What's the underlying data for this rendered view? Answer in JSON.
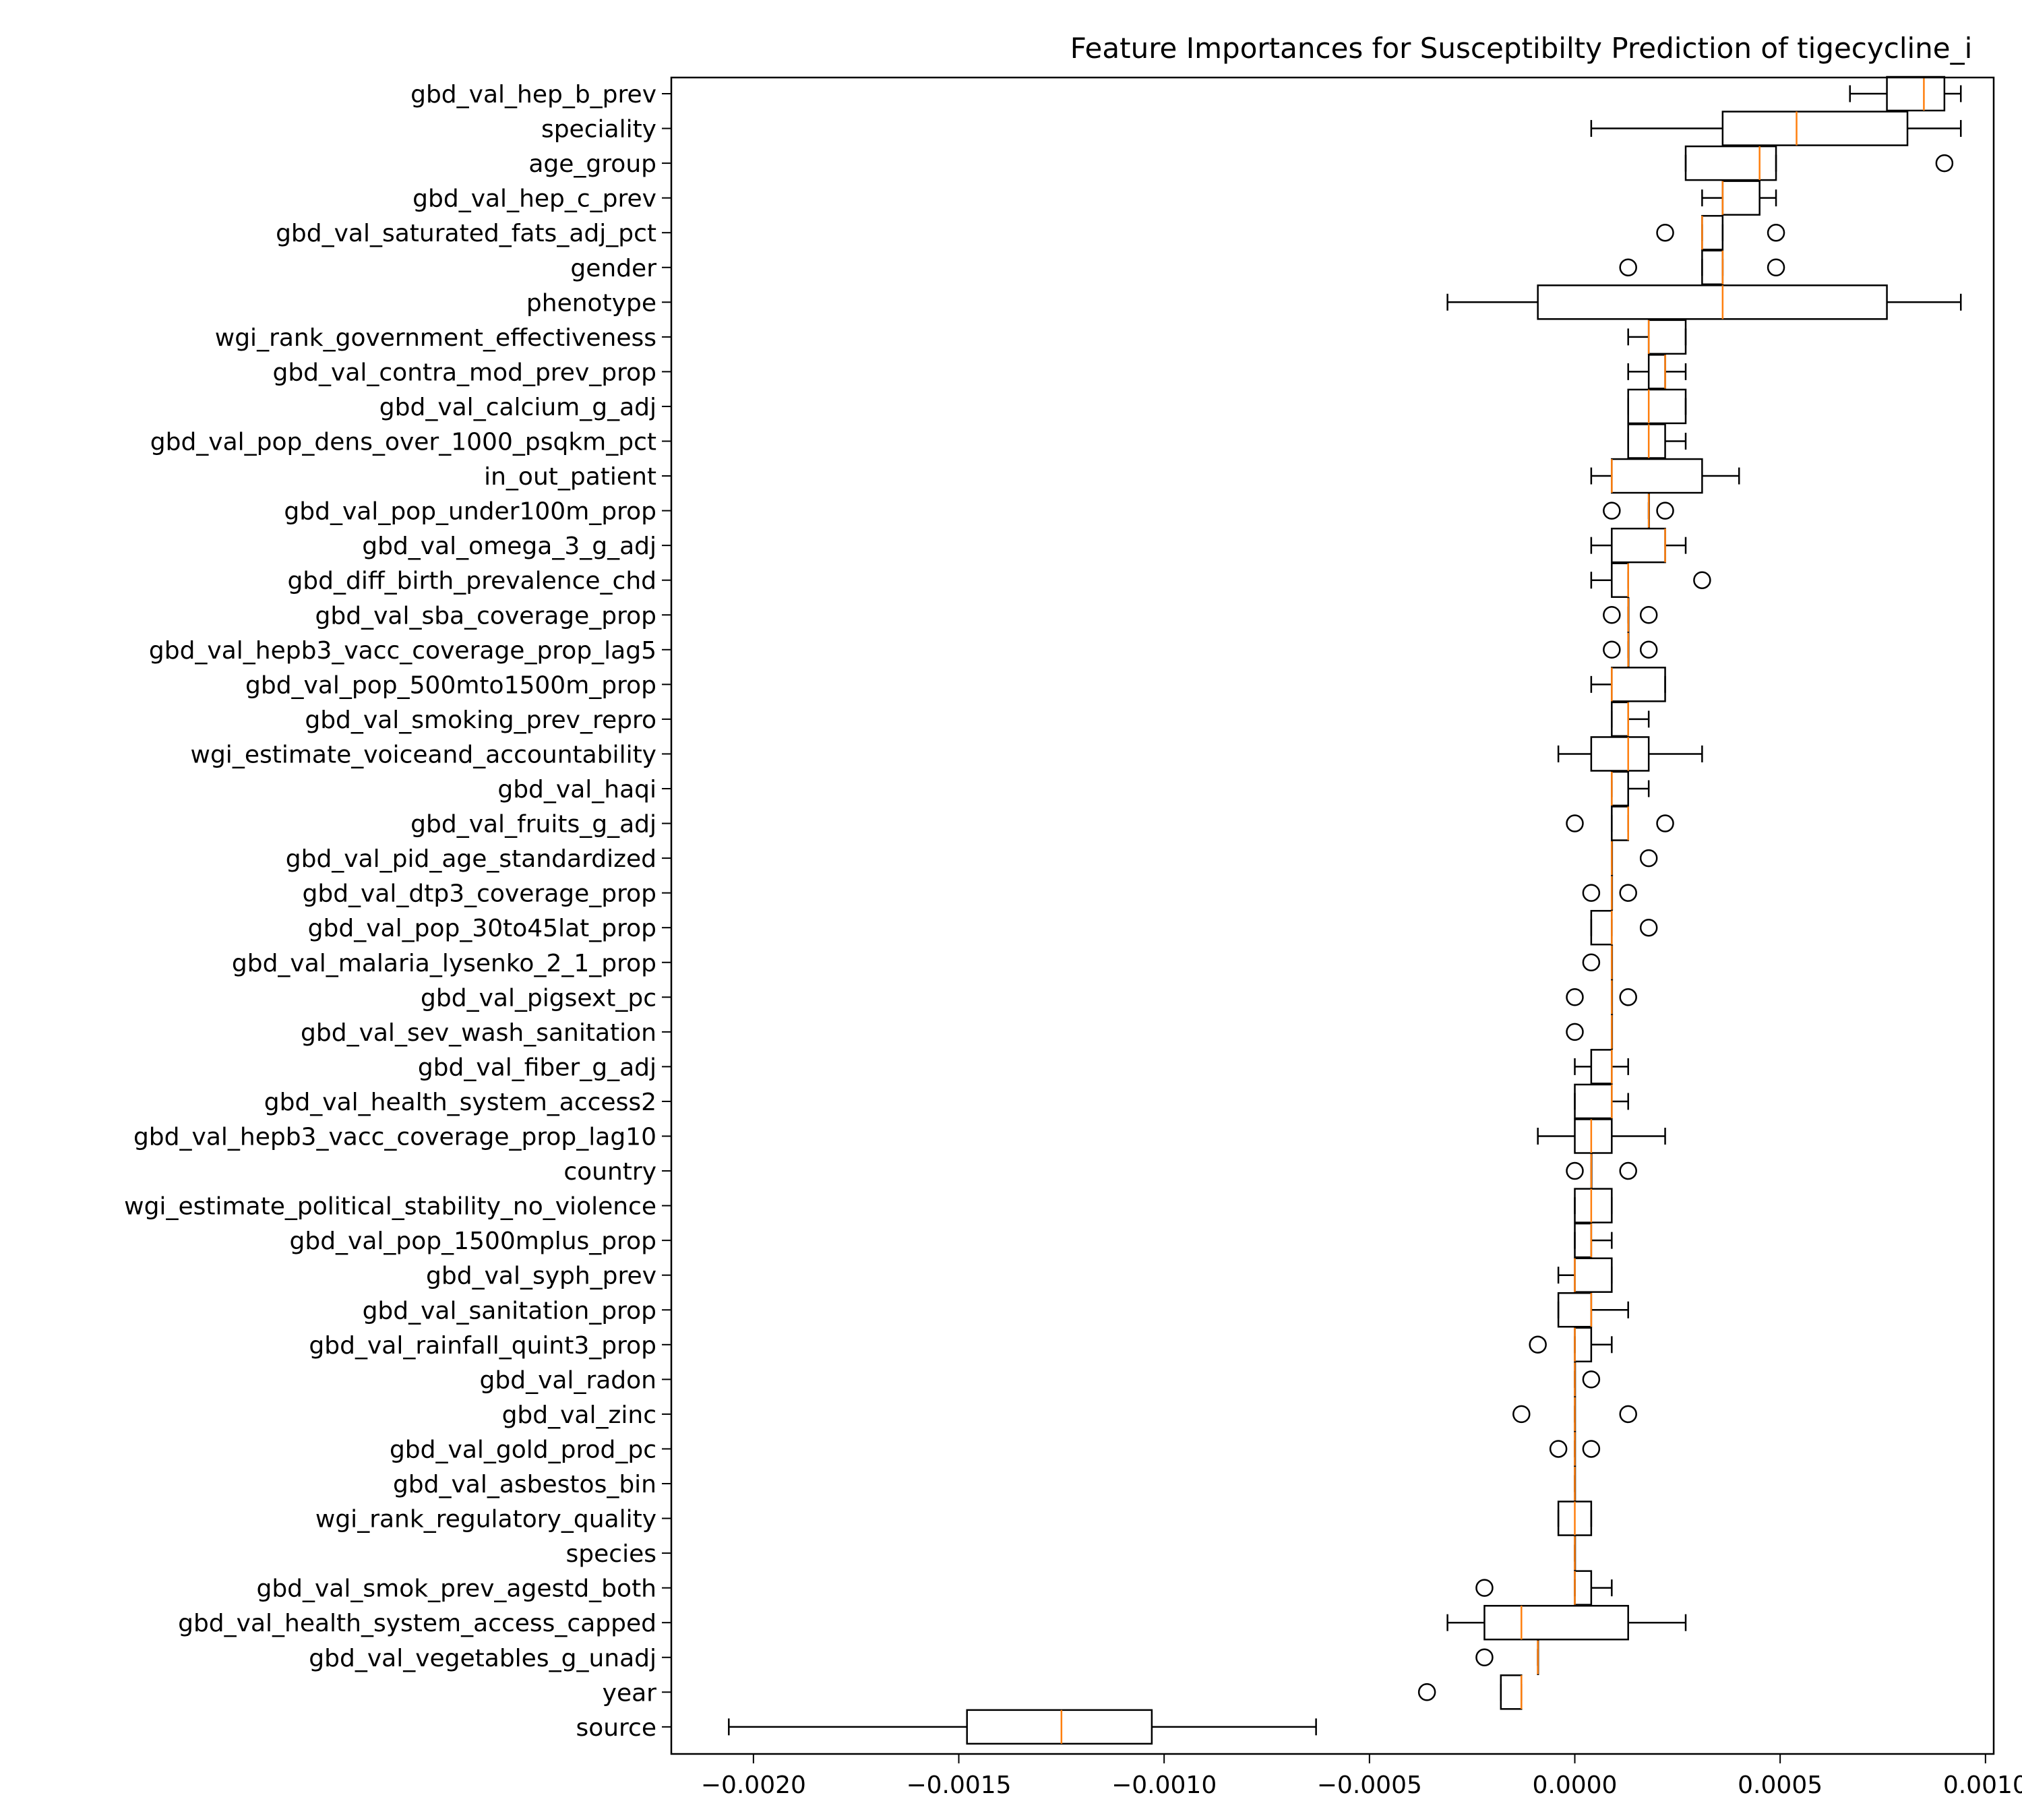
{
  "colors": {
    "median": "#ff7f0e",
    "box": "#000000",
    "background": "#ffffff"
  },
  "chart_data": {
    "type": "boxplot",
    "orientation": "horizontal",
    "title": "Feature Importances for Susceptibilty Prediction of tigecycline_i",
    "xlabel": "",
    "ylabel": "",
    "xlim": [
      -0.0022,
      0.00102
    ],
    "xticks": [
      -0.002,
      -0.0015,
      -0.001,
      -0.0005,
      0.0,
      0.0005,
      0.001
    ],
    "xtick_labels": [
      "−0.0020",
      "−0.0015",
      "−0.0010",
      "−0.0005",
      "0.0000",
      "0.0005",
      "0.0010"
    ],
    "grid": false,
    "legend": "none",
    "features": [
      {
        "label": "gbd_val_hep_b_prev",
        "wmin": 0.00067,
        "q1": 0.00076,
        "med": 0.00085,
        "q3": 0.0009,
        "wmax": 0.00094,
        "outliers": []
      },
      {
        "label": "speciality",
        "wmin": 4e-05,
        "q1": 0.00036,
        "med": 0.00054,
        "q3": 0.00081,
        "wmax": 0.00094,
        "outliers": []
      },
      {
        "label": "age_group",
        "wmin": 0.00027,
        "q1": 0.00027,
        "med": 0.00045,
        "q3": 0.00049,
        "wmax": 0.00049,
        "outliers": [
          0.0009
        ]
      },
      {
        "label": "gbd_val_hep_c_prev",
        "wmin": 0.00031,
        "q1": 0.00036,
        "med": 0.00036,
        "q3": 0.00045,
        "wmax": 0.00049,
        "outliers": []
      },
      {
        "label": "gbd_val_saturated_fats_adj_pct",
        "wmin": 0.00031,
        "q1": 0.00031,
        "med": 0.00031,
        "q3": 0.00036,
        "wmax": 0.00036,
        "outliers": [
          0.00022,
          0.00049
        ]
      },
      {
        "label": "gender",
        "wmin": 0.00031,
        "q1": 0.00031,
        "med": 0.00036,
        "q3": 0.00036,
        "wmax": 0.00036,
        "outliers": [
          0.00013,
          0.00049
        ]
      },
      {
        "label": "phenotype",
        "wmin": -0.00031,
        "q1": -9e-05,
        "med": 0.00036,
        "q3": 0.00076,
        "wmax": 0.00094,
        "outliers": []
      },
      {
        "label": "wgi_rank_government_effectiveness",
        "wmin": 0.00013,
        "q1": 0.00018,
        "med": 0.00018,
        "q3": 0.00027,
        "wmax": 0.00027,
        "outliers": []
      },
      {
        "label": "gbd_val_contra_mod_prev_prop",
        "wmin": 0.00013,
        "q1": 0.00018,
        "med": 0.00022,
        "q3": 0.00022,
        "wmax": 0.00027,
        "outliers": []
      },
      {
        "label": "gbd_val_calcium_g_adj",
        "wmin": 0.00013,
        "q1": 0.00013,
        "med": 0.00018,
        "q3": 0.00027,
        "wmax": 0.00027,
        "outliers": []
      },
      {
        "label": "gbd_val_pop_dens_over_1000_psqkm_pct",
        "wmin": 0.00013,
        "q1": 0.00013,
        "med": 0.00018,
        "q3": 0.00022,
        "wmax": 0.00027,
        "outliers": []
      },
      {
        "label": "in_out_patient",
        "wmin": 4e-05,
        "q1": 9e-05,
        "med": 9e-05,
        "q3": 0.00031,
        "wmax": 0.0004,
        "outliers": []
      },
      {
        "label": "gbd_val_pop_under100m_prop",
        "wmin": 0.00018,
        "q1": 0.00018,
        "med": 0.00018,
        "q3": 0.00018,
        "wmax": 0.00018,
        "outliers": [
          9e-05,
          0.00022
        ]
      },
      {
        "label": "gbd_val_omega_3_g_adj",
        "wmin": 4e-05,
        "q1": 9e-05,
        "med": 0.00022,
        "q3": 0.00022,
        "wmax": 0.00027,
        "outliers": []
      },
      {
        "label": "gbd_diff_birth_prevalence_chd",
        "wmin": 4e-05,
        "q1": 9e-05,
        "med": 0.00013,
        "q3": 0.00013,
        "wmax": 0.00013,
        "outliers": [
          0.00031
        ]
      },
      {
        "label": "gbd_val_sba_coverage_prop",
        "wmin": 0.00013,
        "q1": 0.00013,
        "med": 0.00013,
        "q3": 0.00013,
        "wmax": 0.00013,
        "outliers": [
          9e-05,
          0.00018
        ]
      },
      {
        "label": "gbd_val_hepb3_vacc_coverage_prop_lag5",
        "wmin": 0.00013,
        "q1": 0.00013,
        "med": 0.00013,
        "q3": 0.00013,
        "wmax": 0.00013,
        "outliers": [
          9e-05,
          0.00018
        ]
      },
      {
        "label": "gbd_val_pop_500mto1500m_prop",
        "wmin": 4e-05,
        "q1": 9e-05,
        "med": 9e-05,
        "q3": 0.00022,
        "wmax": 0.00022,
        "outliers": []
      },
      {
        "label": "gbd_val_smoking_prev_repro",
        "wmin": 9e-05,
        "q1": 9e-05,
        "med": 0.00013,
        "q3": 0.00013,
        "wmax": 0.00018,
        "outliers": []
      },
      {
        "label": "wgi_estimate_voiceand_accountability",
        "wmin": -4e-05,
        "q1": 4e-05,
        "med": 0.00013,
        "q3": 0.00018,
        "wmax": 0.00031,
        "outliers": []
      },
      {
        "label": "gbd_val_haqi",
        "wmin": 9e-05,
        "q1": 9e-05,
        "med": 9e-05,
        "q3": 0.00013,
        "wmax": 0.00018,
        "outliers": []
      },
      {
        "label": "gbd_val_fruits_g_adj",
        "wmin": 9e-05,
        "q1": 9e-05,
        "med": 0.00013,
        "q3": 0.00013,
        "wmax": 0.00013,
        "outliers": [
          0.0,
          0.00022
        ]
      },
      {
        "label": "gbd_val_pid_age_standardized",
        "wmin": 9e-05,
        "q1": 9e-05,
        "med": 9e-05,
        "q3": 9e-05,
        "wmax": 9e-05,
        "outliers": [
          0.00018
        ]
      },
      {
        "label": "gbd_val_dtp3_coverage_prop",
        "wmin": 9e-05,
        "q1": 9e-05,
        "med": 9e-05,
        "q3": 9e-05,
        "wmax": 9e-05,
        "outliers": [
          4e-05,
          0.00013
        ]
      },
      {
        "label": "gbd_val_pop_30to45lat_prop",
        "wmin": 4e-05,
        "q1": 4e-05,
        "med": 9e-05,
        "q3": 9e-05,
        "wmax": 9e-05,
        "outliers": [
          0.00018
        ]
      },
      {
        "label": "gbd_val_malaria_lysenko_2_1_prop",
        "wmin": 9e-05,
        "q1": 9e-05,
        "med": 9e-05,
        "q3": 9e-05,
        "wmax": 9e-05,
        "outliers": [
          4e-05
        ]
      },
      {
        "label": "gbd_val_pigsext_pc",
        "wmin": 9e-05,
        "q1": 9e-05,
        "med": 9e-05,
        "q3": 9e-05,
        "wmax": 9e-05,
        "outliers": [
          0.0,
          0.00013
        ]
      },
      {
        "label": "gbd_val_sev_wash_sanitation",
        "wmin": 9e-05,
        "q1": 9e-05,
        "med": 9e-05,
        "q3": 9e-05,
        "wmax": 9e-05,
        "outliers": [
          0.0
        ]
      },
      {
        "label": "gbd_val_fiber_g_adj",
        "wmin": 0.0,
        "q1": 4e-05,
        "med": 9e-05,
        "q3": 9e-05,
        "wmax": 0.00013,
        "outliers": []
      },
      {
        "label": "gbd_val_health_system_access2",
        "wmin": 0.0,
        "q1": 0.0,
        "med": 9e-05,
        "q3": 9e-05,
        "wmax": 0.00013,
        "outliers": []
      },
      {
        "label": "gbd_val_hepb3_vacc_coverage_prop_lag10",
        "wmin": -9e-05,
        "q1": 0.0,
        "med": 4e-05,
        "q3": 9e-05,
        "wmax": 0.00022,
        "outliers": []
      },
      {
        "label": "country",
        "wmin": 4e-05,
        "q1": 4e-05,
        "med": 4e-05,
        "q3": 4e-05,
        "wmax": 4e-05,
        "outliers": [
          0.0,
          0.00013
        ]
      },
      {
        "label": "wgi_estimate_political_stability_no_violence",
        "wmin": 0.0,
        "q1": 0.0,
        "med": 4e-05,
        "q3": 9e-05,
        "wmax": 9e-05,
        "outliers": []
      },
      {
        "label": "gbd_val_pop_1500mplus_prop",
        "wmin": 0.0,
        "q1": 0.0,
        "med": 4e-05,
        "q3": 4e-05,
        "wmax": 9e-05,
        "outliers": []
      },
      {
        "label": "gbd_val_syph_prev",
        "wmin": -4e-05,
        "q1": 0.0,
        "med": 0.0,
        "q3": 9e-05,
        "wmax": 9e-05,
        "outliers": []
      },
      {
        "label": "gbd_val_sanitation_prop",
        "wmin": -4e-05,
        "q1": -4e-05,
        "med": 4e-05,
        "q3": 4e-05,
        "wmax": 0.00013,
        "outliers": []
      },
      {
        "label": "gbd_val_rainfall_quint3_prop",
        "wmin": 0.0,
        "q1": 0.0,
        "med": 0.0,
        "q3": 4e-05,
        "wmax": 9e-05,
        "outliers": [
          -9e-05
        ]
      },
      {
        "label": "gbd_val_radon",
        "wmin": 0.0,
        "q1": 0.0,
        "med": 0.0,
        "q3": 0.0,
        "wmax": 0.0,
        "outliers": [
          4e-05
        ]
      },
      {
        "label": "gbd_val_zinc",
        "wmin": 0.0,
        "q1": 0.0,
        "med": 0.0,
        "q3": 0.0,
        "wmax": 0.0,
        "outliers": [
          -0.00013,
          0.00013
        ]
      },
      {
        "label": "gbd_val_gold_prod_pc",
        "wmin": 0.0,
        "q1": 0.0,
        "med": 0.0,
        "q3": 0.0,
        "wmax": 0.0,
        "outliers": [
          -4e-05,
          4e-05
        ]
      },
      {
        "label": "gbd_val_asbestos_bin",
        "wmin": 0.0,
        "q1": 0.0,
        "med": 0.0,
        "q3": 0.0,
        "wmax": 0.0,
        "outliers": []
      },
      {
        "label": "wgi_rank_regulatory_quality",
        "wmin": -4e-05,
        "q1": -4e-05,
        "med": 0.0,
        "q3": 4e-05,
        "wmax": 4e-05,
        "outliers": []
      },
      {
        "label": "species",
        "wmin": 0.0,
        "q1": 0.0,
        "med": 0.0,
        "q3": 0.0,
        "wmax": 0.0,
        "outliers": []
      },
      {
        "label": "gbd_val_smok_prev_agestd_both",
        "wmin": 0.0,
        "q1": 0.0,
        "med": 0.0,
        "q3": 4e-05,
        "wmax": 9e-05,
        "outliers": [
          -0.00022
        ]
      },
      {
        "label": "gbd_val_health_system_access_capped",
        "wmin": -0.00031,
        "q1": -0.00022,
        "med": -0.00013,
        "q3": 0.00013,
        "wmax": 0.00027,
        "outliers": []
      },
      {
        "label": "gbd_val_vegetables_g_unadj",
        "wmin": -9e-05,
        "q1": -9e-05,
        "med": -9e-05,
        "q3": -9e-05,
        "wmax": -9e-05,
        "outliers": [
          -0.00022
        ]
      },
      {
        "label": "year",
        "wmin": -0.00018,
        "q1": -0.00018,
        "med": -0.00013,
        "q3": -0.00013,
        "wmax": -0.00013,
        "outliers": [
          -0.00036
        ]
      },
      {
        "label": "source",
        "wmin": -0.00206,
        "q1": -0.00148,
        "med": -0.00125,
        "q3": -0.00103,
        "wmax": -0.00063,
        "outliers": []
      }
    ]
  }
}
